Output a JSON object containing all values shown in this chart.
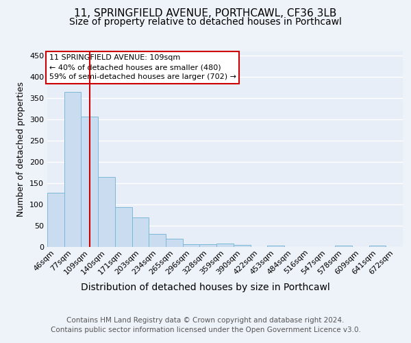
{
  "title1": "11, SPRINGFIELD AVENUE, PORTHCAWL, CF36 3LB",
  "title2": "Size of property relative to detached houses in Porthcawl",
  "xlabel": "Distribution of detached houses by size in Porthcawl",
  "ylabel": "Number of detached properties",
  "footer1": "Contains HM Land Registry data © Crown copyright and database right 2024.",
  "footer2": "Contains public sector information licensed under the Open Government Licence v3.0.",
  "bar_labels": [
    "46sqm",
    "77sqm",
    "109sqm",
    "140sqm",
    "171sqm",
    "203sqm",
    "234sqm",
    "265sqm",
    "296sqm",
    "328sqm",
    "359sqm",
    "390sqm",
    "422sqm",
    "453sqm",
    "484sqm",
    "516sqm",
    "547sqm",
    "578sqm",
    "609sqm",
    "641sqm",
    "672sqm"
  ],
  "bar_values": [
    128,
    365,
    307,
    165,
    93,
    70,
    30,
    19,
    7,
    6,
    8,
    5,
    0,
    4,
    0,
    0,
    0,
    4,
    0,
    4,
    0
  ],
  "bar_color": "#c9dcf0",
  "bar_edge_color": "#7db8d8",
  "red_line_index": 2,
  "red_line_color": "#cc0000",
  "annotation_text": "11 SPRINGFIELD AVENUE: 109sqm\n← 40% of detached houses are smaller (480)\n59% of semi-detached houses are larger (702) →",
  "annotation_box_color": "#ffffff",
  "annotation_box_edge_color": "#cc0000",
  "ylim": [
    0,
    460
  ],
  "yticks": [
    0,
    50,
    100,
    150,
    200,
    250,
    300,
    350,
    400,
    450
  ],
  "background_color": "#eef2f9",
  "plot_background": "#e8eef8",
  "grid_color": "#ffffff",
  "title1_fontsize": 11,
  "title2_fontsize": 10,
  "xlabel_fontsize": 10,
  "ylabel_fontsize": 9,
  "tick_fontsize": 8,
  "annotation_fontsize": 8,
  "footer_fontsize": 7.5
}
